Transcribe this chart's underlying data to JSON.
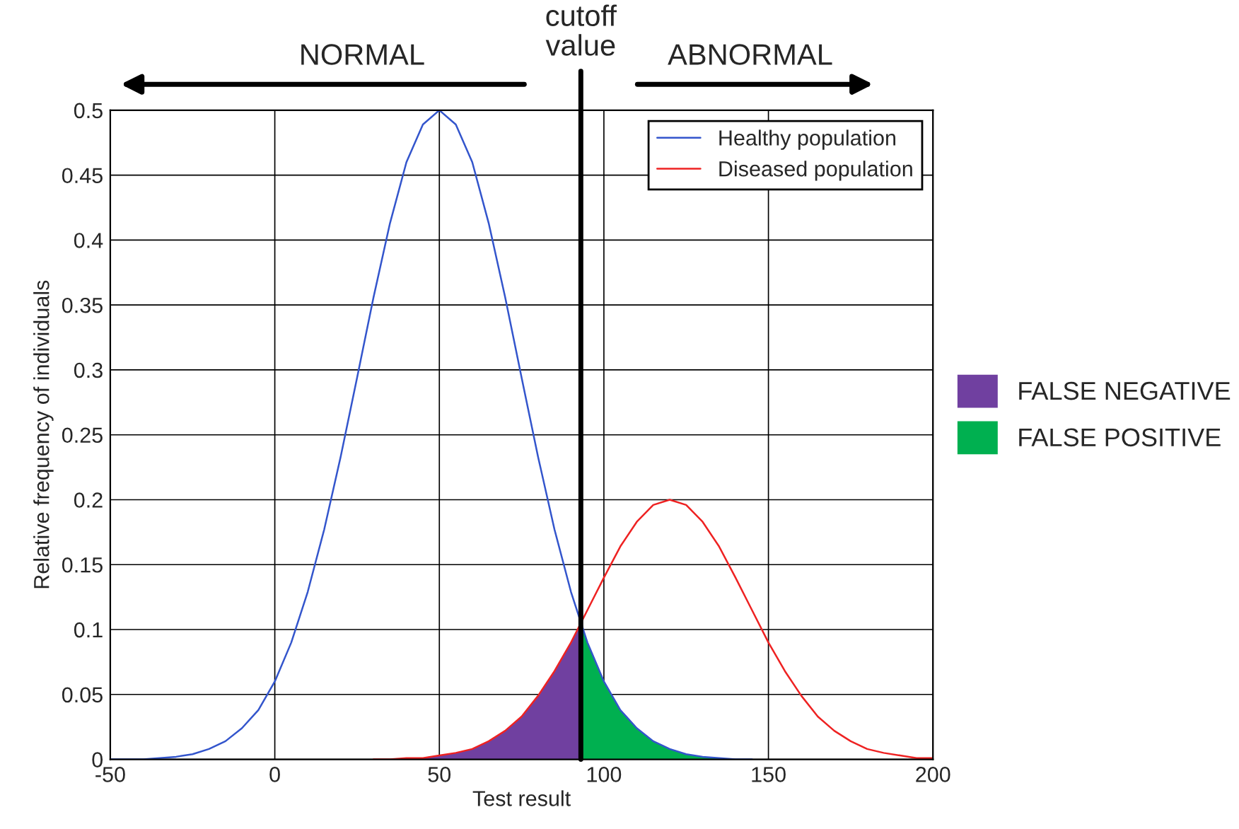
{
  "chart_data": {
    "type": "line",
    "xlabel": "Test result",
    "ylabel": "Relative frequency of individuals",
    "x": [
      -50,
      -45,
      -40,
      -35,
      -30,
      -25,
      -20,
      -15,
      -10,
      -5,
      0,
      5,
      10,
      15,
      20,
      25,
      30,
      35,
      40,
      45,
      50,
      55,
      60,
      65,
      70,
      75,
      80,
      85,
      90,
      95,
      100,
      105,
      110,
      115,
      120,
      125,
      130,
      135,
      140,
      145,
      150,
      155,
      160,
      165,
      170,
      175,
      180,
      185,
      190,
      195,
      200
    ],
    "series": [
      {
        "name": "Healthy population",
        "color": "#3355cc",
        "values": [
          0,
          0,
          0,
          0.001,
          0.002,
          0.004,
          0.008,
          0.014,
          0.024,
          0.038,
          0.06,
          0.09,
          0.129,
          0.177,
          0.233,
          0.294,
          0.356,
          0.413,
          0.46,
          0.489,
          0.5,
          0.489,
          0.46,
          0.413,
          0.356,
          0.294,
          0.233,
          0.177,
          0.129,
          0.09,
          0.06,
          0.038,
          0.024,
          0.014,
          0.008,
          0.004,
          0.002,
          0.001,
          0,
          0,
          null,
          null,
          null,
          null,
          null,
          null,
          null,
          null,
          null,
          null,
          null
        ]
      },
      {
        "name": "Diseased population",
        "color": "#ee2222",
        "values": [
          null,
          null,
          null,
          null,
          null,
          null,
          null,
          null,
          null,
          null,
          null,
          null,
          null,
          null,
          null,
          null,
          0,
          0,
          0.001,
          0.001,
          0.003,
          0.005,
          0.008,
          0.014,
          0.022,
          0.033,
          0.049,
          0.068,
          0.09,
          0.115,
          0.14,
          0.164,
          0.183,
          0.196,
          0.2,
          0.196,
          0.183,
          0.164,
          0.14,
          0.115,
          0.09,
          0.068,
          0.049,
          0.033,
          0.022,
          0.014,
          0.008,
          0.005,
          0.003,
          0.001,
          0.001
        ]
      },
      {
        "name": "FALSE NEGATIVE",
        "type": "area",
        "color": "#7040a0",
        "x": [
          40,
          45,
          50,
          55,
          60,
          65,
          70,
          75,
          80,
          85,
          90,
          93
        ],
        "values": [
          0.001,
          0.001,
          0.003,
          0.005,
          0.008,
          0.014,
          0.022,
          0.033,
          0.049,
          0.068,
          0.09,
          0.104
        ]
      },
      {
        "name": "FALSE POSITIVE",
        "type": "area",
        "color": "#00b050",
        "x": [
          93,
          95,
          100,
          105,
          110,
          115,
          120,
          125,
          130,
          135
        ],
        "values": [
          0.104,
          0.09,
          0.06,
          0.038,
          0.024,
          0.014,
          0.008,
          0.004,
          0.002,
          0.001
        ]
      }
    ],
    "xlim": [
      -50,
      200
    ],
    "xticks": [
      -50,
      0,
      50,
      100,
      150,
      200
    ],
    "ylim": [
      0,
      0.5
    ],
    "yticks": [
      0,
      0.05,
      0.1,
      0.15,
      0.2,
      0.25,
      0.3,
      0.35,
      0.4,
      0.45,
      0.5
    ],
    "ref_lines": [
      {
        "axis": "x",
        "value": 93,
        "label": "cutoff\nvalue",
        "color": "#000000"
      }
    ],
    "annotations": [
      "NORMAL",
      "ABNORMAL"
    ],
    "grid": true,
    "legend": "top right"
  }
}
